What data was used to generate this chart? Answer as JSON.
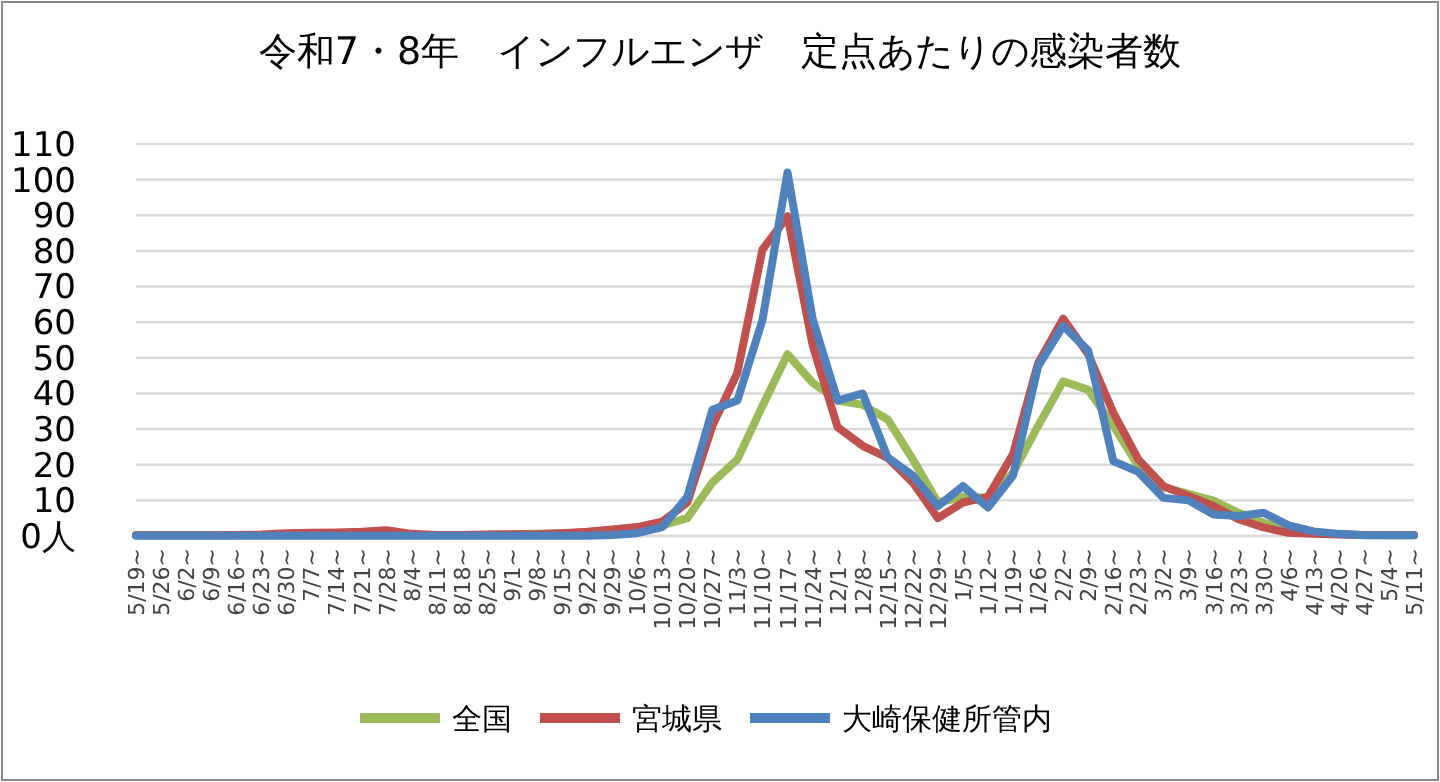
{
  "chart_data": {
    "type": "line",
    "title": "令和7・8年　インフルエンザ　定点あたりの感染者数",
    "categories": [
      "5/19~",
      "5/26~",
      "6/2~",
      "6/9~",
      "6/16~",
      "6/23~",
      "6/30~",
      "7/7~",
      "7/14~",
      "7/21~",
      "7/28~",
      "8/4~",
      "8/11~",
      "8/18~",
      "8/25~",
      "9/1~",
      "9/8~",
      "9/15~",
      "9/22~",
      "9/29~",
      "10/6~",
      "10/13~",
      "10/20~",
      "10/27~",
      "11/3~",
      "11/10~",
      "11/17~",
      "11/24~",
      "12/1~",
      "12/8~",
      "12/15~",
      "12/22~",
      "12/29~",
      "1/5~",
      "1/12~",
      "1/19~",
      "1/26~",
      "2/2~",
      "2/9~",
      "2/16~",
      "2/23~",
      "3/2~",
      "3/9~",
      "3/16~",
      "3/23~",
      "3/30~",
      "4/6~",
      "4/13~",
      "4/20~",
      "4/27~",
      "5/4~",
      "5/11~"
    ],
    "series": [
      {
        "name": "全国",
        "color": "#9bbb59",
        "values": [
          0.3,
          0.3,
          0.3,
          0.3,
          0.3,
          0.3,
          0.3,
          0.3,
          0.3,
          0.3,
          0.3,
          0.3,
          0.3,
          0.3,
          0.3,
          0.5,
          0.6,
          0.8,
          1,
          1.2,
          1.8,
          3,
          5,
          15,
          21.5,
          36.5,
          51,
          43,
          38,
          36.8,
          32.7,
          21.5,
          9.4,
          11,
          10.7,
          17.8,
          30.9,
          43.4,
          41,
          31,
          19.6,
          13.7,
          11.8,
          9.9,
          6.5,
          3.7,
          1.9,
          0.9,
          0.5,
          0.3,
          0.2,
          0.2
        ]
      },
      {
        "name": "宮城県",
        "color": "#c0504d",
        "values": [
          0.2,
          0.2,
          0.2,
          0.2,
          0.3,
          0.4,
          0.8,
          0.9,
          1,
          1.2,
          1.6,
          0.6,
          0.3,
          0.3,
          0.4,
          0.5,
          0.5,
          0.8,
          1.2,
          1.8,
          2.5,
          4,
          9.4,
          30.9,
          45.8,
          80.4,
          89.7,
          53.6,
          30.5,
          25.3,
          21.9,
          15,
          5,
          9.4,
          11,
          23,
          48.5,
          61,
          51,
          34.6,
          21.5,
          14,
          11.2,
          8.4,
          4.7,
          2.4,
          0.9,
          0.6,
          0.4,
          0.3,
          0.3,
          0.3
        ]
      },
      {
        "name": "大崎保健所管内",
        "color": "#4f81bd",
        "values": [
          0.1,
          0.1,
          0.1,
          0.1,
          0.1,
          0.1,
          0.1,
          0.1,
          0.1,
          0.1,
          0.1,
          0.1,
          0.1,
          0.1,
          0.1,
          0.1,
          0.1,
          0.1,
          0.1,
          0.3,
          0.8,
          2.5,
          11,
          35.4,
          38,
          60.6,
          102,
          61,
          38,
          40,
          22,
          17,
          8.4,
          14,
          8,
          17,
          47.6,
          59,
          52,
          21,
          18,
          10.7,
          10,
          6,
          5.6,
          6.5,
          3,
          1.3,
          0.6,
          0.2,
          0.2,
          0.2
        ]
      }
    ],
    "ylim": [
      0,
      110
    ],
    "yticks": [
      {
        "value": 0,
        "label": "0人"
      },
      10,
      20,
      30,
      40,
      50,
      60,
      70,
      80,
      90,
      100,
      110
    ],
    "grid": "y",
    "legend": "bottom",
    "marker": "none",
    "line_style": "solid"
  }
}
